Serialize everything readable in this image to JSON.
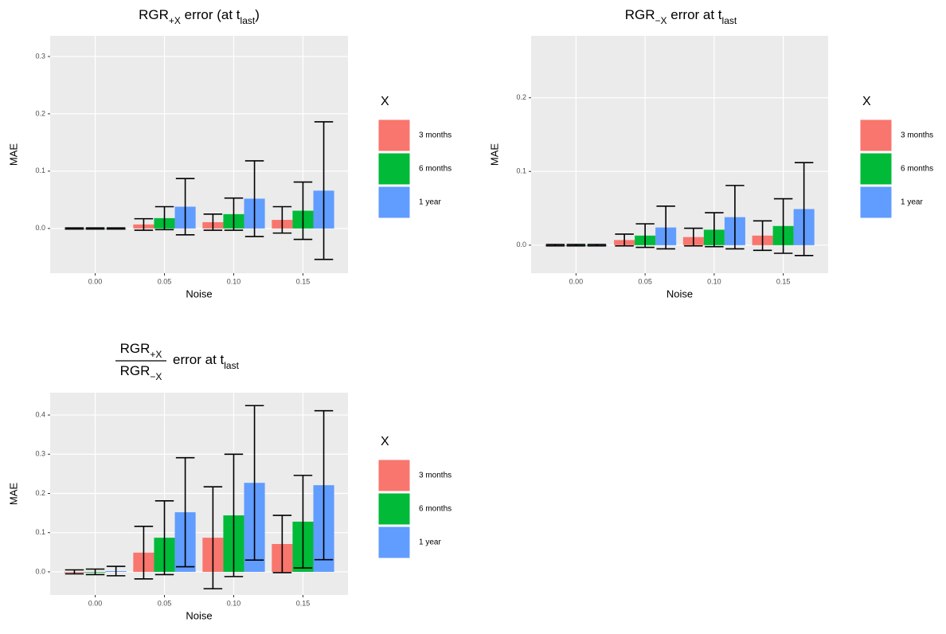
{
  "chart_data": [
    {
      "type": "bar",
      "title": [
        {
          "text": "RGR"
        },
        {
          "text": "+X",
          "sub": true
        },
        {
          "text": " error (at t"
        },
        {
          "text": "last",
          "sub": true
        },
        {
          "text": ")"
        }
      ],
      "xlabel": "Noise",
      "ylabel": "MAE",
      "legend_title": "X",
      "legend": "right",
      "grid": true,
      "categories": [
        "0.00",
        "0.05",
        "0.10",
        "0.15"
      ],
      "ylim": [
        -0.078,
        0.336
      ],
      "yticks": [
        {
          "value": 0,
          "label": "0.0"
        },
        {
          "value": 0.1,
          "label": "0.1"
        },
        {
          "value": 0.2,
          "label": "0.2"
        },
        {
          "value": 0.3,
          "label": "0.3"
        }
      ],
      "series": [
        {
          "name": "3 months",
          "color": "#F8766D",
          "values": [
            0,
            0.007,
            0.011,
            0.015
          ],
          "errors": [
            0.001,
            0.01,
            0.014,
            0.023
          ]
        },
        {
          "name": "6 months",
          "color": "#00BA38",
          "values": [
            0,
            0.018,
            0.025,
            0.031
          ],
          "errors": [
            0.001,
            0.02,
            0.028,
            0.05
          ]
        },
        {
          "name": "1 year",
          "color": "#619CFF",
          "values": [
            0,
            0.038,
            0.052,
            0.066
          ],
          "errors": [
            0.001,
            0.049,
            0.066,
            0.12
          ]
        }
      ]
    },
    {
      "type": "bar",
      "title": [
        {
          "text": "RGR"
        },
        {
          "text": "−X",
          "sub": true
        },
        {
          "text": " error at t"
        },
        {
          "text": "last",
          "sub": true
        }
      ],
      "xlabel": "Noise",
      "ylabel": "MAE",
      "legend_title": "X",
      "legend": "right",
      "grid": true,
      "categories": [
        "0.00",
        "0.05",
        "0.10",
        "0.15"
      ],
      "ylim": [
        -0.038,
        0.284
      ],
      "yticks": [
        {
          "value": 0,
          "label": "0.0"
        },
        {
          "value": 0.1,
          "label": "0.1"
        },
        {
          "value": 0.2,
          "label": "0.2"
        }
      ],
      "series": [
        {
          "name": "3 months",
          "color": "#F8766D",
          "values": [
            0,
            0.007,
            0.011,
            0.013
          ],
          "errors": [
            0.001,
            0.008,
            0.012,
            0.02
          ]
        },
        {
          "name": "6 months",
          "color": "#00BA38",
          "values": [
            0,
            0.013,
            0.021,
            0.026
          ],
          "errors": [
            0.001,
            0.016,
            0.023,
            0.037
          ]
        },
        {
          "name": "1 year",
          "color": "#619CFF",
          "values": [
            0,
            0.024,
            0.038,
            0.049
          ],
          "errors": [
            0.001,
            0.029,
            0.043,
            0.063
          ]
        }
      ]
    },
    {
      "type": "bar",
      "title": {
        "numerator": [
          {
            "text": "RGR"
          },
          {
            "text": "+X",
            "sub": true
          }
        ],
        "denominator": [
          {
            "text": "RGR"
          },
          {
            "text": "−X",
            "sub": true
          }
        ],
        "text": [
          {
            "text": "error at t"
          },
          {
            "text": "last",
            "sub": true
          }
        ]
      },
      "xlabel": "Noise",
      "ylabel": "MAE",
      "legend_title": "X",
      "legend": "right",
      "grid": true,
      "categories": [
        "0.00",
        "0.05",
        "0.10",
        "0.15"
      ],
      "ylim": [
        -0.059,
        0.457
      ],
      "yticks": [
        {
          "value": 0,
          "label": "0.0"
        },
        {
          "value": 0.1,
          "label": "0.1"
        },
        {
          "value": 0.2,
          "label": "0.2"
        },
        {
          "value": 0.3,
          "label": "0.3"
        },
        {
          "value": 0.4,
          "label": "0.4"
        }
      ],
      "series": [
        {
          "name": "3 months",
          "color": "#F8766D",
          "values": [
            0,
            0.049,
            0.087,
            0.071
          ],
          "errors": [
            0.005,
            0.067,
            0.13,
            0.073
          ]
        },
        {
          "name": "6 months",
          "color": "#00BA38",
          "values": [
            0,
            0.087,
            0.144,
            0.128
          ],
          "errors": [
            0.007,
            0.094,
            0.156,
            0.118
          ]
        },
        {
          "name": "1 year",
          "color": "#619CFF",
          "values": [
            0.002,
            0.152,
            0.227,
            0.221
          ],
          "errors": [
            0.012,
            0.139,
            0.197,
            0.19
          ]
        }
      ]
    }
  ]
}
